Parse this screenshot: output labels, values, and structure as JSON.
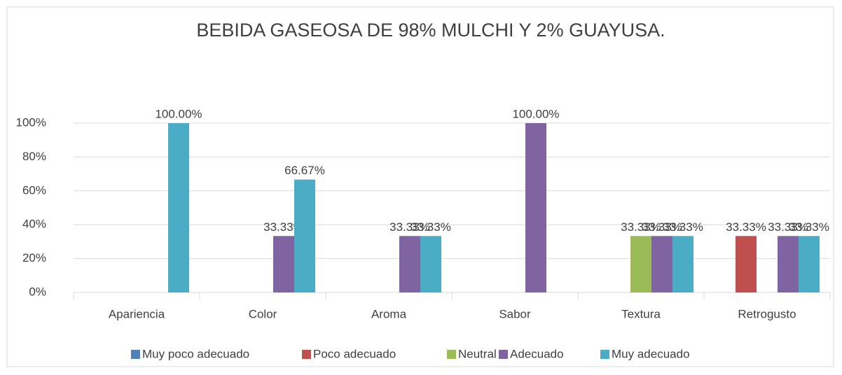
{
  "chart_data": {
    "type": "bar",
    "title": "BEBIDA GASEOSA DE 98% MULCHI Y 2% GUAYUSA.",
    "categories": [
      "Apariencia",
      "Color",
      "Aroma",
      "Sabor",
      "Textura",
      "Retrogusto"
    ],
    "series": [
      {
        "name": "Muy poco adecuado",
        "color": "#4f81bd",
        "values": [
          null,
          null,
          null,
          null,
          null,
          null
        ],
        "value_labels": [
          null,
          null,
          null,
          null,
          null,
          null
        ]
      },
      {
        "name": "Poco adecuado",
        "color": "#c0504d",
        "values": [
          null,
          null,
          null,
          null,
          null,
          33.33
        ],
        "value_labels": [
          null,
          null,
          null,
          null,
          null,
          "33.33%"
        ]
      },
      {
        "name": "Neutral",
        "color": "#9bbb59",
        "values": [
          null,
          null,
          null,
          null,
          33.33,
          null
        ],
        "value_labels": [
          null,
          null,
          null,
          null,
          "33.33%",
          null
        ]
      },
      {
        "name": "Adecuado",
        "color": "#8064a2",
        "values": [
          null,
          33.33,
          33.33,
          100,
          33.33,
          33.33
        ],
        "value_labels": [
          null,
          "33.33%",
          "33.33%",
          "100.00%",
          "33.33%",
          "33.33%"
        ]
      },
      {
        "name": "Muy adecuado",
        "color": "#4bacc6",
        "values": [
          100,
          66.67,
          33.33,
          null,
          33.33,
          33.33
        ],
        "value_labels": [
          "100.00%",
          "66.67%",
          "33.33%",
          null,
          "33.33%",
          "33.33%"
        ]
      }
    ],
    "ylim": [
      0,
      100
    ],
    "yticks": [
      {
        "value": 0,
        "label": "0%"
      },
      {
        "value": 20,
        "label": "20%"
      },
      {
        "value": 40,
        "label": "40%"
      },
      {
        "value": 60,
        "label": "60%"
      },
      {
        "value": 80,
        "label": "80%"
      },
      {
        "value": 100,
        "label": "100%"
      }
    ],
    "grid": true,
    "legend": "bottom"
  }
}
